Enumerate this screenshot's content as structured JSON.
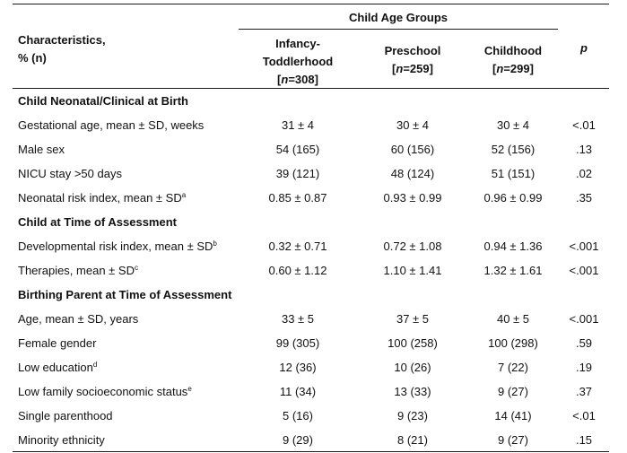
{
  "header": {
    "group_title": "Child Age Groups",
    "characteristics_line1": "Characteristics,",
    "characteristics_line2": "% (n)",
    "col1_line1": "Infancy-",
    "col1_line2": "Toddlerhood",
    "col1_n_open": "[",
    "col1_n_var": "n",
    "col1_n_value": "=308]",
    "col2_line1": "Preschool",
    "col2_n_open": "[",
    "col2_n_var": "n",
    "col2_n_value": "=259]",
    "col3_line1": "Childhood",
    "col3_n_open": "[",
    "col3_n_var": "n",
    "col3_n_value": "=299]",
    "p_label": "p"
  },
  "sections": [
    {
      "title": "Child Neonatal/Clinical at Birth",
      "rows": [
        {
          "label": "Gestational age, mean ± SD, weeks",
          "sup": "",
          "c1": "31 ± 4",
          "c2": "30 ± 4",
          "c3": "30 ± 4",
          "p": "<.01"
        },
        {
          "label": "Male sex",
          "sup": "",
          "c1": "54 (165)",
          "c2": "60 (156)",
          "c3": "52 (156)",
          "p": ".13"
        },
        {
          "label": "NICU stay >50 days",
          "sup": "",
          "c1": "39 (121)",
          "c2": "48 (124)",
          "c3": "51 (151)",
          "p": ".02"
        },
        {
          "label": "Neonatal risk index, mean ± SD",
          "sup": "a",
          "c1": "0.85 ± 0.87",
          "c2": "0.93 ± 0.99",
          "c3": "0.96 ± 0.99",
          "p": ".35"
        }
      ]
    },
    {
      "title": "Child at Time of Assessment",
      "rows": [
        {
          "label": "Developmental risk index, mean ± SD",
          "sup": "b",
          "c1": "0.32 ± 0.71",
          "c2": "0.72 ± 1.08",
          "c3": "0.94 ± 1.36",
          "p": "<.001"
        },
        {
          "label": "Therapies, mean ± SD",
          "sup": "c",
          "c1": "0.60 ± 1.12",
          "c2": "1.10 ± 1.41",
          "c3": "1.32 ± 1.61",
          "p": "<.001"
        }
      ]
    },
    {
      "title": "Birthing Parent at Time of Assessment",
      "rows": [
        {
          "label": "Age, mean ± SD, years",
          "sup": "",
          "c1": "33 ± 5",
          "c2": "37 ± 5",
          "c3": "40 ± 5",
          "p": "<.001"
        },
        {
          "label": "Female gender",
          "sup": "",
          "c1": "99 (305)",
          "c2": "100 (258)",
          "c3": "100 (298)",
          "p": ".59"
        },
        {
          "label": "Low education",
          "sup": "d",
          "c1": "12 (36)",
          "c2": "10 (26)",
          "c3": "7 (22)",
          "p": ".19"
        },
        {
          "label": "Low family socioeconomic status",
          "sup": "e",
          "c1": "11 (34)",
          "c2": "13 (33)",
          "c3": "9 (27)",
          "p": ".37"
        },
        {
          "label": "Single parenthood",
          "sup": "",
          "c1": "5 (16)",
          "c2": "9 (23)",
          "c3": "14 (41)",
          "p": "<.01"
        },
        {
          "label": "Minority ethnicity",
          "sup": "",
          "c1": "9 (29)",
          "c2": "8 (21)",
          "c3": "9 (27)",
          "p": ".15"
        }
      ]
    }
  ]
}
